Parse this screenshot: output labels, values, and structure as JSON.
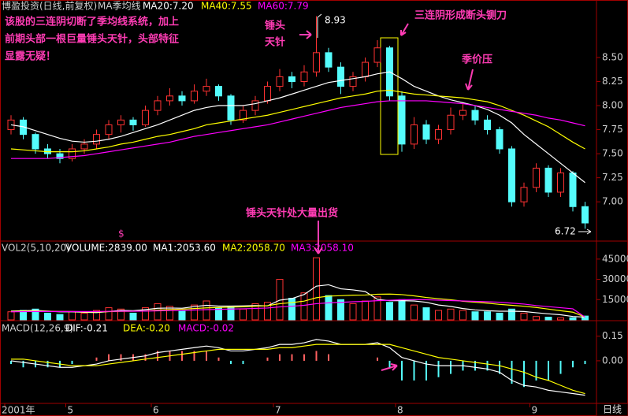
{
  "chart_data": {
    "type": "candlestick",
    "title": "博盈投资(日线,前复权)",
    "subtitle": "MA季均线",
    "categories": [
      "2001年",
      null,
      null,
      null,
      null,
      "5",
      null,
      null,
      null,
      null,
      null,
      null,
      "6",
      null,
      null,
      null,
      null,
      null,
      null,
      null,
      null,
      null,
      "7",
      null,
      null,
      null,
      null,
      null,
      null,
      null,
      null,
      null,
      "8",
      null,
      null,
      null,
      null,
      null,
      null,
      null,
      null,
      null,
      null,
      "9",
      null,
      null,
      null,
      null
    ],
    "open": [
      7.75,
      7.85,
      7.7,
      7.55,
      7.5,
      7.45,
      7.55,
      7.6,
      7.7,
      7.8,
      7.85,
      7.8,
      7.95,
      8.05,
      8.1,
      8.05,
      8.15,
      8.2,
      8.1,
      7.85,
      7.95,
      8.05,
      8.2,
      8.3,
      8.25,
      8.35,
      8.55,
      8.4,
      8.2,
      8.3,
      8.45,
      8.6,
      8.1,
      7.6,
      7.8,
      7.65,
      7.75,
      7.9,
      7.95,
      7.85,
      7.75,
      7.55,
      7.0,
      7.15,
      7.35,
      7.1,
      7.3,
      6.95
    ],
    "high": [
      7.9,
      7.88,
      7.72,
      7.6,
      7.55,
      7.6,
      7.65,
      7.75,
      7.85,
      7.9,
      7.88,
      8.0,
      8.1,
      8.18,
      8.15,
      8.22,
      8.28,
      8.22,
      8.12,
      8.0,
      8.1,
      8.25,
      8.38,
      8.35,
      8.42,
      8.93,
      8.6,
      8.45,
      8.35,
      8.5,
      8.68,
      8.62,
      8.15,
      7.88,
      7.85,
      7.8,
      7.98,
      8.02,
      8.0,
      7.9,
      7.78,
      7.58,
      7.2,
      7.4,
      7.38,
      7.35,
      7.32,
      7.0
    ],
    "low": [
      7.7,
      7.65,
      7.5,
      7.45,
      7.4,
      7.42,
      7.5,
      7.55,
      7.65,
      7.72,
      7.74,
      7.78,
      7.9,
      8.0,
      8.0,
      8.02,
      8.1,
      8.05,
      7.8,
      7.82,
      7.9,
      8.02,
      8.15,
      8.18,
      8.2,
      8.3,
      8.35,
      8.12,
      8.15,
      8.25,
      8.4,
      8.05,
      7.52,
      7.55,
      7.6,
      7.6,
      7.7,
      7.85,
      7.8,
      7.7,
      7.5,
      6.95,
      6.95,
      7.1,
      7.05,
      7.05,
      6.9,
      6.72
    ],
    "close": [
      7.85,
      7.7,
      7.55,
      7.5,
      7.45,
      7.55,
      7.6,
      7.7,
      7.8,
      7.85,
      7.8,
      7.95,
      8.05,
      8.1,
      8.05,
      8.15,
      8.2,
      8.1,
      7.85,
      7.95,
      8.05,
      8.2,
      8.3,
      8.25,
      8.35,
      8.55,
      8.4,
      8.2,
      8.3,
      8.45,
      8.6,
      8.1,
      7.6,
      7.8,
      7.65,
      7.75,
      7.9,
      7.95,
      7.85,
      7.75,
      7.55,
      7.0,
      7.15,
      7.35,
      7.1,
      7.3,
      6.95,
      6.78
    ],
    "up_color": "#ff3232",
    "down_color": "#54fcfc",
    "series": [
      {
        "name": "MA20:7.20",
        "color": "#ffffff",
        "values": [
          7.8,
          7.78,
          7.74,
          7.7,
          7.66,
          7.63,
          7.62,
          7.63,
          7.65,
          7.68,
          7.72,
          7.76,
          7.8,
          7.85,
          7.9,
          7.95,
          7.98,
          8.0,
          8.0,
          8.0,
          8.02,
          8.05,
          8.08,
          8.12,
          8.16,
          8.2,
          8.24,
          8.26,
          8.28,
          8.3,
          8.33,
          8.35,
          8.28,
          8.2,
          8.15,
          8.1,
          8.06,
          8.03,
          8.0,
          7.96,
          7.9,
          7.82,
          7.7,
          7.6,
          7.5,
          7.4,
          7.3,
          7.2
        ]
      },
      {
        "name": "MA40:7.55",
        "color": "#ffff00",
        "values": [
          7.55,
          7.54,
          7.53,
          7.52,
          7.52,
          7.52,
          7.53,
          7.55,
          7.57,
          7.6,
          7.62,
          7.65,
          7.68,
          7.7,
          7.73,
          7.76,
          7.8,
          7.82,
          7.84,
          7.86,
          7.88,
          7.9,
          7.93,
          7.96,
          7.99,
          8.02,
          8.05,
          8.08,
          8.1,
          8.12,
          8.15,
          8.16,
          8.14,
          8.12,
          8.11,
          8.1,
          8.09,
          8.08,
          8.06,
          8.04,
          8.0,
          7.95,
          7.9,
          7.84,
          7.78,
          7.7,
          7.62,
          7.55
        ]
      },
      {
        "name": "MA60:7.79",
        "color": "#ff00ff",
        "values": [
          7.45,
          7.45,
          7.45,
          7.45,
          7.46,
          7.47,
          7.48,
          7.5,
          7.52,
          7.54,
          7.56,
          7.58,
          7.6,
          7.62,
          7.65,
          7.68,
          7.7,
          7.72,
          7.74,
          7.76,
          7.78,
          7.8,
          7.83,
          7.86,
          7.89,
          7.92,
          7.95,
          7.98,
          8.0,
          8.02,
          8.04,
          8.05,
          8.05,
          8.05,
          8.05,
          8.04,
          8.03,
          8.02,
          8.0,
          7.98,
          7.96,
          7.94,
          7.92,
          7.9,
          7.87,
          7.85,
          7.82,
          7.79
        ]
      }
    ],
    "ylim": [
      6.6,
      8.95
    ],
    "yticks": [
      {
        "value": 7,
        "label": "7.00"
      },
      {
        "value": 7.25,
        "label": "7.25"
      },
      {
        "value": 7.5,
        "label": "7.50"
      },
      {
        "value": 7.75,
        "label": "7.75"
      },
      {
        "value": 8,
        "label": "8.00"
      },
      {
        "value": 8.25,
        "label": "8.25"
      },
      {
        "value": 8.5,
        "label": "8.50"
      }
    ],
    "volume": {
      "title": "VOL2(5,10,20)",
      "label": "VOLUME:2839.00",
      "values": [
        6000,
        7000,
        8000,
        5000,
        4000,
        6000,
        5000,
        7000,
        9000,
        8000,
        5000,
        9000,
        12000,
        10000,
        7000,
        11000,
        14000,
        9000,
        10000,
        8000,
        12000,
        13000,
        30000,
        16000,
        20000,
        46000,
        18000,
        15000,
        12000,
        14000,
        17000,
        13000,
        15000,
        11000,
        9000,
        7000,
        8000,
        7000,
        6000,
        6000,
        5000,
        8000,
        5000,
        2500,
        2000,
        1500,
        1600,
        2839
      ],
      "series": [
        {
          "name": "MA1:2053.60",
          "color": "#ffffff",
          "values": [
            6500,
            6800,
            7000,
            6500,
            6000,
            6000,
            5600,
            5400,
            6200,
            7000,
            6800,
            7600,
            8600,
            8800,
            8600,
            9800,
            10800,
            10200,
            10200,
            10400,
            10600,
            10400,
            14600,
            15800,
            18800,
            25000,
            26000,
            23000,
            22200,
            21000,
            15200,
            14200,
            14200,
            14000,
            13000,
            11000,
            10000,
            8400,
            7400,
            6800,
            6400,
            6400,
            6200,
            5300,
            4500,
            3800,
            2500,
            2053.6
          ]
        },
        {
          "name": "MA2:2058.70",
          "color": "#ffff00",
          "values": [
            6200,
            6400,
            6500,
            6400,
            6300,
            6200,
            6000,
            6000,
            6100,
            6300,
            6400,
            6600,
            7200,
            7700,
            7900,
            8400,
            8900,
            9200,
            9500,
            9700,
            10100,
            10500,
            12000,
            12800,
            13900,
            16400,
            17600,
            17900,
            18300,
            18400,
            19000,
            19100,
            18700,
            17800,
            16600,
            15700,
            14900,
            13800,
            13100,
            12400,
            11500,
            10800,
            10100,
            9200,
            8000,
            6800,
            5700,
            2058.7
          ]
        },
        {
          "name": "MA3:2058.10",
          "color": "#ff00ff",
          "values": [
            6000,
            6100,
            6200,
            6200,
            6200,
            6200,
            6200,
            6200,
            6300,
            6400,
            6400,
            6500,
            6700,
            6900,
            7000,
            7300,
            7600,
            7800,
            8000,
            8200,
            8500,
            8800,
            9600,
            10100,
            10800,
            12000,
            12600,
            13000,
            13400,
            13700,
            14200,
            14500,
            14900,
            15000,
            14900,
            14600,
            14300,
            14000,
            13700,
            13400,
            13100,
            12400,
            11700,
            10600,
            9800,
            9000,
            8200,
            2058.1
          ]
        }
      ],
      "ylim": [
        0,
        56000
      ],
      "yticks": [
        15000,
        30000,
        45000
      ]
    },
    "macd": {
      "title": "MACD(12,26,9)",
      "name": "MACD:-0.02",
      "up_color": "#ff6060",
      "down_color": "#54fcfc",
      "values": [
        -0.02,
        -0.04,
        -0.04,
        -0.04,
        -0.04,
        -0.02,
        0.0,
        0.02,
        0.04,
        0.04,
        0.04,
        0.04,
        0.06,
        0.06,
        0.06,
        0.06,
        0.06,
        0.02,
        -0.02,
        -0.02,
        0.0,
        0.02,
        0.04,
        0.04,
        0.04,
        0.06,
        0.04,
        0.0,
        0.0,
        0.0,
        0.02,
        -0.04,
        -0.12,
        -0.12,
        -0.12,
        -0.1,
        -0.08,
        -0.06,
        -0.06,
        -0.06,
        -0.08,
        -0.14,
        -0.16,
        -0.12,
        -0.12,
        -0.08,
        -0.04,
        -0.02
      ],
      "series": [
        {
          "name": "DIF:-0.21",
          "color": "#ffffff",
          "values": [
            0.0,
            -0.01,
            -0.02,
            -0.03,
            -0.04,
            -0.04,
            -0.03,
            -0.02,
            0.0,
            0.01,
            0.02,
            0.03,
            0.05,
            0.06,
            0.07,
            0.08,
            0.09,
            0.08,
            0.06,
            0.06,
            0.07,
            0.08,
            0.1,
            0.1,
            0.11,
            0.13,
            0.12,
            0.1,
            0.1,
            0.1,
            0.11,
            0.08,
            0.02,
            0.0,
            -0.02,
            -0.03,
            -0.03,
            -0.03,
            -0.04,
            -0.05,
            -0.07,
            -0.12,
            -0.15,
            -0.16,
            -0.18,
            -0.19,
            -0.2,
            -0.21
          ]
        },
        {
          "name": "DEA:-0.20",
          "color": "#ffff00",
          "values": [
            0.01,
            0.01,
            0.0,
            -0.01,
            -0.02,
            -0.03,
            -0.03,
            -0.03,
            -0.02,
            -0.01,
            0.0,
            0.01,
            0.02,
            0.03,
            0.04,
            0.05,
            0.06,
            0.07,
            0.07,
            0.07,
            0.07,
            0.07,
            0.08,
            0.08,
            0.09,
            0.1,
            0.1,
            0.1,
            0.1,
            0.1,
            0.1,
            0.1,
            0.08,
            0.06,
            0.04,
            0.02,
            0.01,
            0.0,
            -0.01,
            -0.02,
            -0.03,
            -0.05,
            -0.07,
            -0.1,
            -0.12,
            -0.15,
            -0.18,
            -0.2
          ]
        }
      ],
      "ylim": [
        -0.26,
        0.24
      ],
      "yticks": [
        {
          "value": 0,
          "label": "0.00"
        },
        {
          "value": 0.15,
          "label": "0.15"
        }
      ]
    },
    "annotations": [
      "该股的三连阴切断了季均线系统，加上",
      "前期头部一根巨量锤头天针，头部特征",
      "显露无疑！",
      "锤头",
      "天针",
      "三连阴形成断头铡刀",
      "季价压",
      "锤头天针处大量出货",
      "$"
    ],
    "period_label": "日线"
  }
}
